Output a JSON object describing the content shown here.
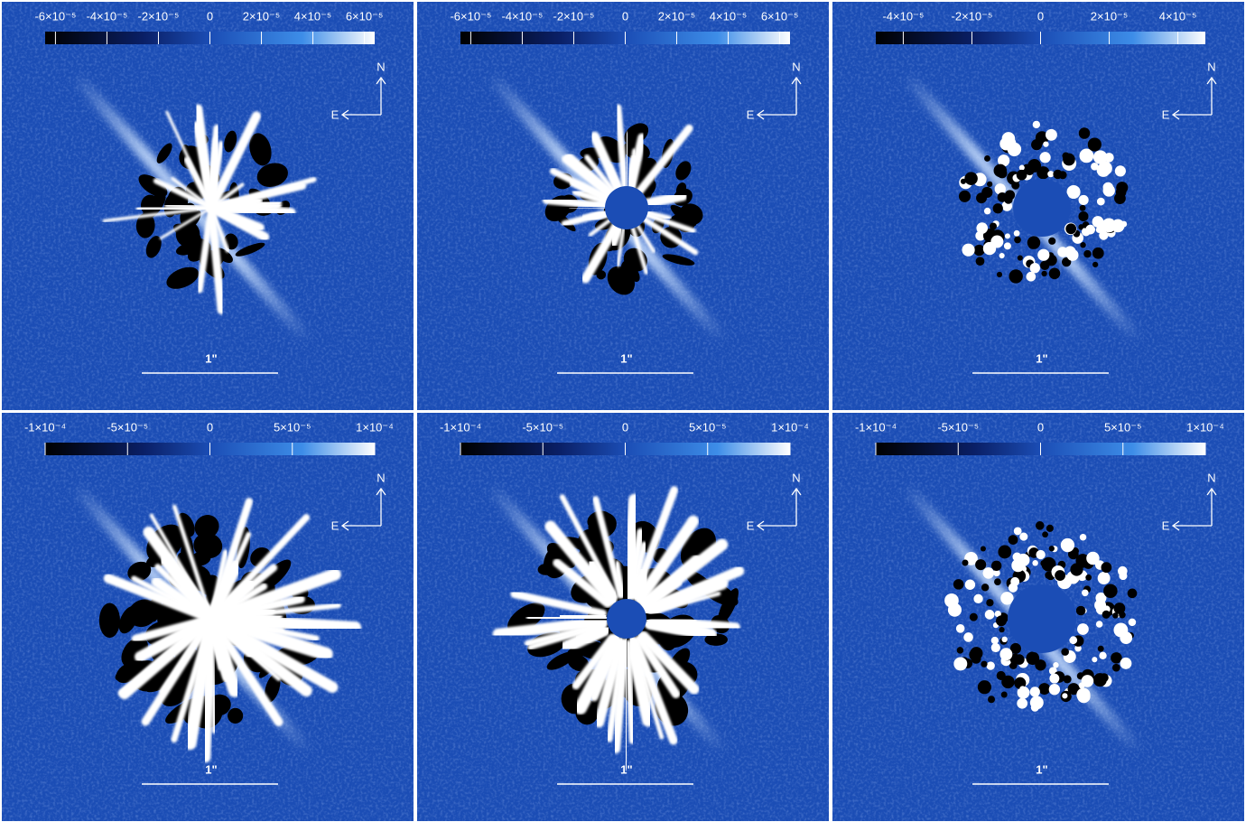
{
  "panels": [
    {
      "colorbar_lim": [
        -6.4e-05,
        6.4e-05
      ],
      "colorbar_ticks": [
        {
          "value": -6e-05,
          "label": "-6×10⁻⁵"
        },
        {
          "value": -4e-05,
          "label": "-4×10⁻⁵"
        },
        {
          "value": -2e-05,
          "label": "-2×10⁻⁵"
        },
        0,
        {
          "value": 2e-05,
          "label": "2×10⁻⁵"
        },
        {
          "value": 4e-05,
          "label": "4×10⁻⁵"
        },
        {
          "value": 6e-05,
          "label": "6×10⁻⁵"
        }
      ],
      "north_label": "N",
      "east_label": "E",
      "scale_label": "1\""
    },
    {
      "colorbar_lim": [
        -6.4e-05,
        6.4e-05
      ],
      "colorbar_ticks": [
        {
          "value": -6e-05,
          "label": "-6×10⁻⁵"
        },
        {
          "value": -4e-05,
          "label": "-4×10⁻⁵"
        },
        {
          "value": -2e-05,
          "label": "-2×10⁻⁵"
        },
        0,
        {
          "value": 2e-05,
          "label": "2×10⁻⁵"
        },
        {
          "value": 4e-05,
          "label": "4×10⁻⁵"
        },
        {
          "value": 6e-05,
          "label": "6×10⁻⁵"
        }
      ],
      "north_label": "N",
      "east_label": "E",
      "scale_label": "1\""
    },
    {
      "colorbar_lim": [
        -4.8e-05,
        4.8e-05
      ],
      "colorbar_ticks": [
        {
          "value": -4e-05,
          "label": "-4×10⁻⁵"
        },
        {
          "value": -2e-05,
          "label": "-2×10⁻⁵"
        },
        0,
        {
          "value": 2e-05,
          "label": "2×10⁻⁵"
        },
        {
          "value": 4e-05,
          "label": "4×10⁻⁵"
        }
      ],
      "north_label": "N",
      "east_label": "E",
      "scale_label": "1\""
    },
    {
      "colorbar_lim": [
        -0.0001,
        0.0001
      ],
      "colorbar_ticks": [
        {
          "value": -0.0001,
          "label": "-1×10⁻⁴"
        },
        {
          "value": -5e-05,
          "label": "-5×10⁻⁵"
        },
        0,
        {
          "value": 5e-05,
          "label": "5×10⁻⁵"
        },
        {
          "value": 0.0001,
          "label": "1×10⁻⁴"
        }
      ],
      "north_label": "N",
      "east_label": "E",
      "scale_label": "1\""
    },
    {
      "colorbar_lim": [
        -0.0001,
        0.0001
      ],
      "colorbar_ticks": [
        {
          "value": -0.0001,
          "label": "-1×10⁻⁴"
        },
        {
          "value": -5e-05,
          "label": "-5×10⁻⁵"
        },
        0,
        {
          "value": 5e-05,
          "label": "5×10⁻⁵"
        },
        {
          "value": 0.0001,
          "label": "1×10⁻⁴"
        }
      ],
      "north_label": "N",
      "east_label": "E",
      "scale_label": "1\""
    },
    {
      "colorbar_lim": [
        -0.0001,
        0.0001
      ],
      "colorbar_ticks": [
        {
          "value": -0.0001,
          "label": "-1×10⁻⁴"
        },
        {
          "value": -5e-05,
          "label": "-5×10⁻⁵"
        },
        0,
        {
          "value": 5e-05,
          "label": "5×10⁻⁵"
        },
        {
          "value": 0.0001,
          "label": "1×10⁻⁴"
        }
      ],
      "north_label": "N",
      "east_label": "E",
      "scale_label": "1\""
    }
  ]
}
